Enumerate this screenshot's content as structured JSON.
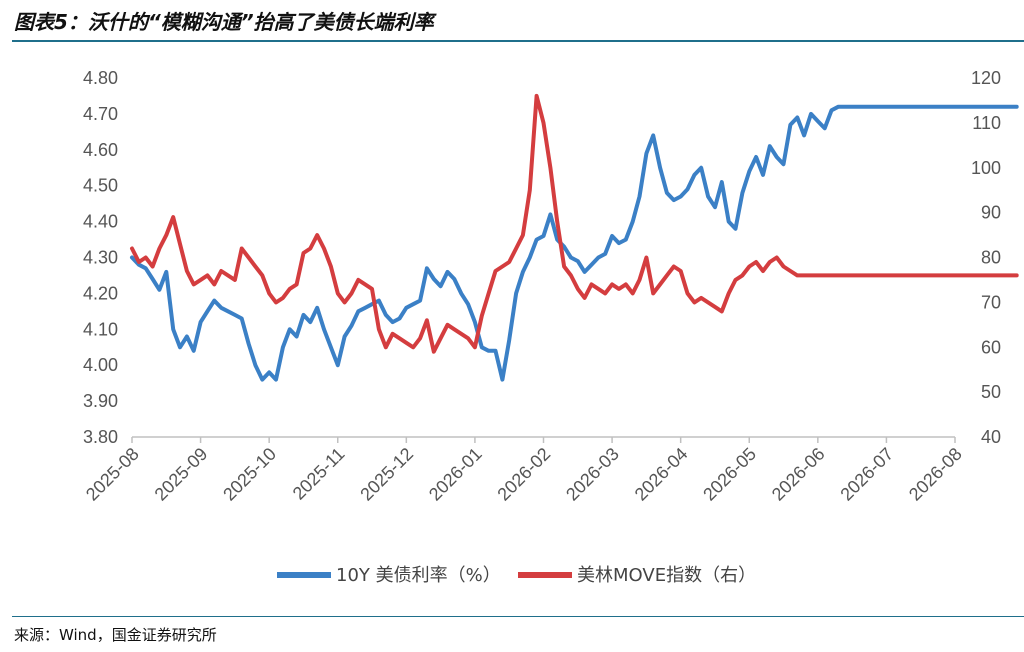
{
  "page": {
    "title": "图表5：沃什的“模糊沟通”抬高了美债长端利率",
    "source": "来源：Wind，国金证券研究所"
  },
  "colors": {
    "series_10y": "#3b80c6",
    "series_move": "#d43d3f",
    "rule": "#1f6f8b",
    "axis": "#c0c0c0"
  },
  "chart_data": {
    "type": "line",
    "x_categories": [
      "2025-08",
      "2025-09",
      "2025-10",
      "2025-11",
      "2025-12",
      "2026-01",
      "2026-02",
      "2026-03",
      "2026-04",
      "2026-05",
      "2026-06",
      "2026-07",
      "2026-08"
    ],
    "y_left": {
      "ticks": [
        "4.80",
        "4.70",
        "4.60",
        "4.50",
        "4.40",
        "4.30",
        "4.20",
        "4.10",
        "4.00",
        "3.90",
        "3.80"
      ],
      "min": 3.8,
      "max": 4.8
    },
    "y_right": {
      "ticks": [
        "120",
        "110",
        "100",
        "90",
        "80",
        "70",
        "60",
        "50",
        "40"
      ],
      "min": 40,
      "max": 120
    },
    "grid": false,
    "legend_position": "bottom",
    "series": [
      {
        "name": "10Y 美债利率（%）",
        "axis": "left",
        "x": [
          0,
          0.1,
          0.2,
          0.3,
          0.4,
          0.5,
          0.6,
          0.7,
          0.8,
          0.9,
          1.0,
          1.1,
          1.2,
          1.3,
          1.4,
          1.5,
          1.6,
          1.7,
          1.8,
          1.9,
          2.0,
          2.1,
          2.2,
          2.3,
          2.4,
          2.5,
          2.6,
          2.7,
          2.8,
          2.9,
          3.0,
          3.1,
          3.2,
          3.3,
          3.4,
          3.5,
          3.6,
          3.7,
          3.8,
          3.9,
          4.0,
          4.1,
          4.2,
          4.3,
          4.4,
          4.5,
          4.6,
          4.7,
          4.8,
          4.9,
          5.0,
          5.1,
          5.2,
          5.3,
          5.4,
          5.5,
          5.6,
          5.7,
          5.8,
          5.9,
          6.0,
          6.1,
          6.2,
          6.3,
          6.4,
          6.5,
          6.6,
          6.7,
          6.8,
          6.9,
          7.0,
          7.1,
          7.2,
          7.3,
          7.4,
          7.5,
          7.6,
          7.7,
          7.8,
          7.9,
          8.0,
          8.1,
          8.2,
          8.3,
          8.4,
          8.5,
          8.6,
          8.7,
          8.8,
          8.9,
          9.0,
          9.1,
          9.2,
          9.3,
          9.4,
          9.5,
          9.6,
          9.7,
          9.8,
          9.9,
          10.0,
          10.1,
          10.2,
          10.3,
          10.4,
          10.5,
          10.6,
          10.7,
          10.8,
          10.9,
          11.0,
          11.1,
          11.2,
          11.3,
          11.4,
          11.5,
          11.6,
          11.7,
          11.8,
          11.9,
          12.0,
          12.1,
          12.2,
          12.3,
          12.4,
          12.5,
          12.6,
          12.7,
          12.8,
          12.9
        ],
        "values": [
          4.3,
          4.28,
          4.27,
          4.24,
          4.21,
          4.26,
          4.1,
          4.05,
          4.08,
          4.04,
          4.12,
          4.15,
          4.18,
          4.16,
          4.15,
          4.14,
          4.13,
          4.06,
          4.0,
          3.96,
          3.98,
          3.96,
          4.05,
          4.1,
          4.08,
          4.14,
          4.12,
          4.16,
          4.1,
          4.05,
          4.0,
          4.08,
          4.11,
          4.15,
          4.16,
          4.17,
          4.18,
          4.14,
          4.12,
          4.13,
          4.16,
          4.17,
          4.18,
          4.27,
          4.24,
          4.22,
          4.26,
          4.24,
          4.2,
          4.17,
          4.12,
          4.05,
          4.04,
          4.04,
          3.96,
          4.07,
          4.2,
          4.26,
          4.3,
          4.35,
          4.36,
          4.42,
          4.35,
          4.33,
          4.3,
          4.29,
          4.26,
          4.28,
          4.3,
          4.31,
          4.36,
          4.34,
          4.35,
          4.4,
          4.47,
          4.59,
          4.64,
          4.55,
          4.48,
          4.46,
          4.47,
          4.49,
          4.53,
          4.55,
          4.47,
          4.44,
          4.51,
          4.4,
          4.38,
          4.48,
          4.54,
          4.58,
          4.53,
          4.61,
          4.58,
          4.56,
          4.67,
          4.69,
          4.64,
          4.7,
          4.68,
          4.66,
          4.71,
          4.72,
          4.72,
          4.72,
          4.72,
          4.72,
          4.72,
          4.72,
          4.72,
          4.72,
          4.72,
          4.72,
          4.72,
          4.72,
          4.72,
          4.72,
          4.72,
          4.72,
          4.72,
          4.72,
          4.72,
          4.72,
          4.72,
          4.72,
          4.72,
          4.72,
          4.72,
          4.72
        ]
      },
      {
        "name": "美林MOVE指数（右）",
        "axis": "right",
        "x": [
          0,
          0.1,
          0.2,
          0.3,
          0.4,
          0.5,
          0.6,
          0.7,
          0.8,
          0.9,
          1.0,
          1.1,
          1.2,
          1.3,
          1.4,
          1.5,
          1.6,
          1.7,
          1.8,
          1.9,
          2.0,
          2.1,
          2.2,
          2.3,
          2.4,
          2.5,
          2.6,
          2.7,
          2.8,
          2.9,
          3.0,
          3.1,
          3.2,
          3.3,
          3.4,
          3.5,
          3.6,
          3.7,
          3.8,
          3.9,
          4.0,
          4.1,
          4.2,
          4.3,
          4.4,
          4.5,
          4.6,
          4.7,
          4.8,
          4.9,
          5.0,
          5.1,
          5.2,
          5.3,
          5.4,
          5.5,
          5.6,
          5.7,
          5.8,
          5.9,
          6.0,
          6.1,
          6.2,
          6.3,
          6.4,
          6.5,
          6.6,
          6.7,
          6.8,
          6.9,
          7.0,
          7.1,
          7.2,
          7.3,
          7.4,
          7.5,
          7.6,
          7.7,
          7.8,
          7.9,
          8.0,
          8.1,
          8.2,
          8.3,
          8.4,
          8.5,
          8.6,
          8.7,
          8.8,
          8.9,
          9.0,
          9.1,
          9.2,
          9.3,
          9.4,
          9.5,
          9.6,
          9.7,
          9.8,
          9.9,
          10.0,
          10.1,
          10.2,
          10.3,
          10.4,
          10.5,
          10.6,
          10.7,
          10.8,
          10.9,
          11.0,
          11.1,
          11.2,
          11.3,
          11.4,
          11.5,
          11.6,
          11.7,
          11.8,
          11.9,
          12.0,
          12.1,
          12.2,
          12.3,
          12.4,
          12.5,
          12.6,
          12.7,
          12.8,
          12.9
        ],
        "values": [
          82,
          79,
          80,
          78,
          82,
          85,
          89,
          83,
          77,
          74,
          75,
          76,
          74,
          77,
          76,
          75,
          82,
          80,
          78,
          76,
          72,
          70,
          71,
          73,
          74,
          81,
          82,
          85,
          82,
          78,
          72,
          70,
          72,
          75,
          74,
          73,
          64,
          60,
          63,
          62,
          61,
          60,
          62,
          66,
          59,
          62,
          65,
          64,
          63,
          62,
          60,
          67,
          72,
          77,
          78,
          79,
          82,
          85,
          95,
          116,
          110,
          100,
          88,
          78,
          76,
          73,
          71,
          74,
          73,
          72,
          74,
          73,
          74,
          72,
          75,
          80,
          72,
          74,
          76,
          78,
          77,
          72,
          70,
          71,
          70,
          69,
          68,
          72,
          75,
          76,
          78,
          79,
          77,
          79,
          80,
          78,
          77,
          76,
          76,
          76,
          76,
          76,
          76,
          76,
          76,
          76,
          76,
          76,
          76,
          76,
          76,
          76,
          76,
          76,
          76,
          76,
          76,
          76,
          76,
          76,
          76,
          76,
          76,
          76,
          76,
          76,
          76,
          76,
          76,
          76
        ]
      }
    ]
  },
  "legend": {
    "items": [
      {
        "label": "10Y 美债利率（%）",
        "color": "#3b80c6"
      },
      {
        "label": "美林MOVE指数（右）",
        "color": "#d43d3f"
      }
    ]
  }
}
